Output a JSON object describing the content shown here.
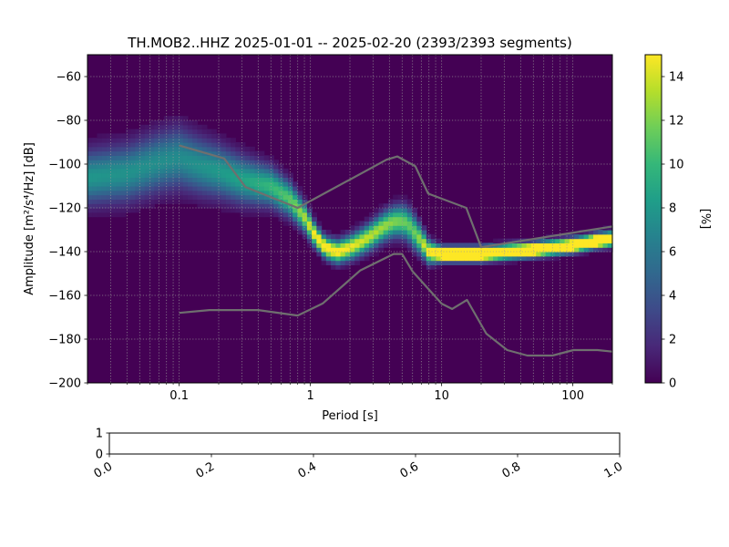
{
  "chart_data": [
    {
      "type": "heatmap",
      "title": "TH.MOB2..HHZ   2025-01-01 -- 2025-02-20  (2393/2393 segments)",
      "xlabel": "Period [s]",
      "ylabel": "Amplitude [m²/s⁴/Hz] [dB]",
      "x_scale": "log",
      "xlim": [
        0.02,
        200
      ],
      "ylim": [
        -200,
        -50
      ],
      "x_ticks": [
        0.1,
        1,
        10,
        100
      ],
      "x_tick_labels": [
        "0.1",
        "1",
        "10",
        "100"
      ],
      "y_ticks": [
        -200,
        -180,
        -160,
        -140,
        -120,
        -100,
        -80,
        -60
      ],
      "y_tick_labels": [
        "−200",
        "−180",
        "−160",
        "−140",
        "−120",
        "−100",
        "−80",
        "−60"
      ],
      "grid": true,
      "colormap": "viridis",
      "colorbar": {
        "label": "[%]",
        "range": [
          0,
          15
        ],
        "ticks": [
          0,
          2,
          4,
          6,
          8,
          10,
          12,
          14
        ],
        "tick_labels": [
          "0",
          "2",
          "4",
          "6",
          "8",
          "10",
          "12",
          "14"
        ]
      },
      "mode_curve": {
        "period": [
          0.02,
          0.04,
          0.07,
          0.1,
          0.15,
          0.2,
          0.3,
          0.5,
          0.7,
          0.9,
          1.1,
          1.3,
          1.6,
          2.0,
          2.5,
          3.0,
          3.5,
          4.0,
          4.5,
          5.0,
          5.5,
          6.0,
          7.0,
          8.0,
          10,
          12,
          15,
          20,
          30,
          50,
          70,
          100,
          150,
          200
        ],
        "db": [
          -106,
          -104,
          -99,
          -97,
          -101,
          -103,
          -107,
          -110,
          -116,
          -124,
          -133,
          -138,
          -140,
          -138,
          -135,
          -132,
          -129,
          -127,
          -126,
          -126,
          -127,
          -130,
          -135,
          -140,
          -141,
          -141,
          -141,
          -141,
          -140,
          -139,
          -138,
          -137,
          -135,
          -134
        ]
      },
      "spread_db": [
        [
          0.02,
          8
        ],
        [
          0.1,
          9
        ],
        [
          0.3,
          7
        ],
        [
          0.7,
          5
        ],
        [
          1.2,
          3
        ],
        [
          3,
          4
        ],
        [
          6,
          5
        ],
        [
          10,
          2
        ],
        [
          200,
          2
        ]
      ],
      "reference_curves": [
        {
          "period": [
            0.1,
            0.17,
            0.4,
            0.8,
            1.24,
            2.4,
            4.3,
            5.0,
            6.0,
            10,
            12,
            15.6,
            21.9,
            31.6,
            45,
            70,
            101,
            154,
            200
          ],
          "db": [
            -168,
            -166.7,
            -166.7,
            -169.2,
            -163.7,
            -148.6,
            -141.1,
            -141.1,
            -149.0,
            -163.8,
            -166.2,
            -162.1,
            -177.5,
            -185.0,
            -187.5,
            -187.5,
            -185.0,
            -185.0,
            -185.7
          ]
        },
        {
          "period": [
            0.1,
            0.22,
            0.32,
            0.8,
            3.8,
            4.6,
            6.3,
            7.9,
            15.4,
            20,
            200
          ],
          "db": [
            -91.5,
            -97.4,
            -110.5,
            -120.0,
            -98.0,
            -96.5,
            -101.0,
            -113.5,
            -120.0,
            -138.0,
            -128.5
          ]
        }
      ]
    },
    {
      "type": "line",
      "xlim": [
        0,
        1
      ],
      "ylim": [
        0,
        1
      ],
      "x_ticks": [
        0.0,
        0.2,
        0.4,
        0.6,
        0.8,
        1.0
      ],
      "x_tick_labels": [
        "0.0",
        "0.2",
        "0.4",
        "0.6",
        "0.8",
        "1.0"
      ],
      "y_ticks": [
        0,
        1
      ],
      "y_tick_labels": [
        "0",
        "1"
      ],
      "series": []
    }
  ]
}
